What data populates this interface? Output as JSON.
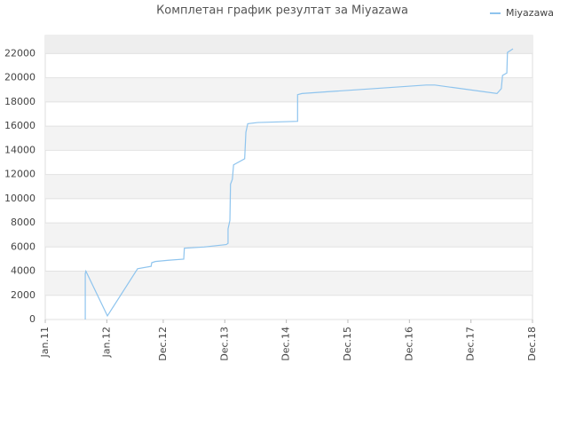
{
  "chart_data": {
    "type": "line",
    "title": "Комплетан график резултат за Miyazawa",
    "series": [
      {
        "name": "Miyazawa",
        "color": "#8ec4ee",
        "x": [
          2011.65,
          2011.65,
          2011.66,
          2012.01,
          2012.5,
          2012.72,
          2012.73,
          2012.79,
          2013.0,
          2013.25,
          2013.26,
          2013.58,
          2013.94,
          2013.97,
          2013.97,
          2014.0,
          2014.01,
          2014.04,
          2014.06,
          2014.24,
          2014.26,
          2014.29,
          2014.45,
          2015.1,
          2015.1,
          2015.17,
          2015.74,
          2016.32,
          2017.19,
          2017.33,
          2018.34,
          2018.41,
          2018.43,
          2018.5,
          2018.51,
          2018.6
        ],
        "values": [
          0,
          3800,
          4000,
          300,
          4200,
          4400,
          4700,
          4800,
          4900,
          5000,
          5900,
          6000,
          6200,
          6300,
          7500,
          8200,
          11200,
          11600,
          12800,
          13300,
          15500,
          16200,
          16300,
          16400,
          18600,
          18700,
          18900,
          19100,
          19400,
          19400,
          18700,
          19100,
          20200,
          20400,
          22100,
          22400
        ]
      }
    ],
    "xlim": [
      2011,
      2018.917
    ],
    "xticks": [
      {
        "value": 2011,
        "label": "Jan.11"
      },
      {
        "value": 2012,
        "label": "Jan.12"
      },
      {
        "value": 2012.917,
        "label": "Dec.12"
      },
      {
        "value": 2013.917,
        "label": "Dec.13"
      },
      {
        "value": 2014.917,
        "label": "Dec.14"
      },
      {
        "value": 2015.917,
        "label": "Dec.15"
      },
      {
        "value": 2016.917,
        "label": "Dec.16"
      },
      {
        "value": 2017.917,
        "label": "Dec.17"
      },
      {
        "value": 2018.917,
        "label": "Dec.18"
      }
    ],
    "ylim": [
      0,
      23500
    ],
    "yticks": [
      0,
      2000,
      4000,
      6000,
      8000,
      10000,
      12000,
      14000,
      16000,
      18000,
      20000,
      22000
    ],
    "grid": true,
    "legend": "top-right"
  }
}
